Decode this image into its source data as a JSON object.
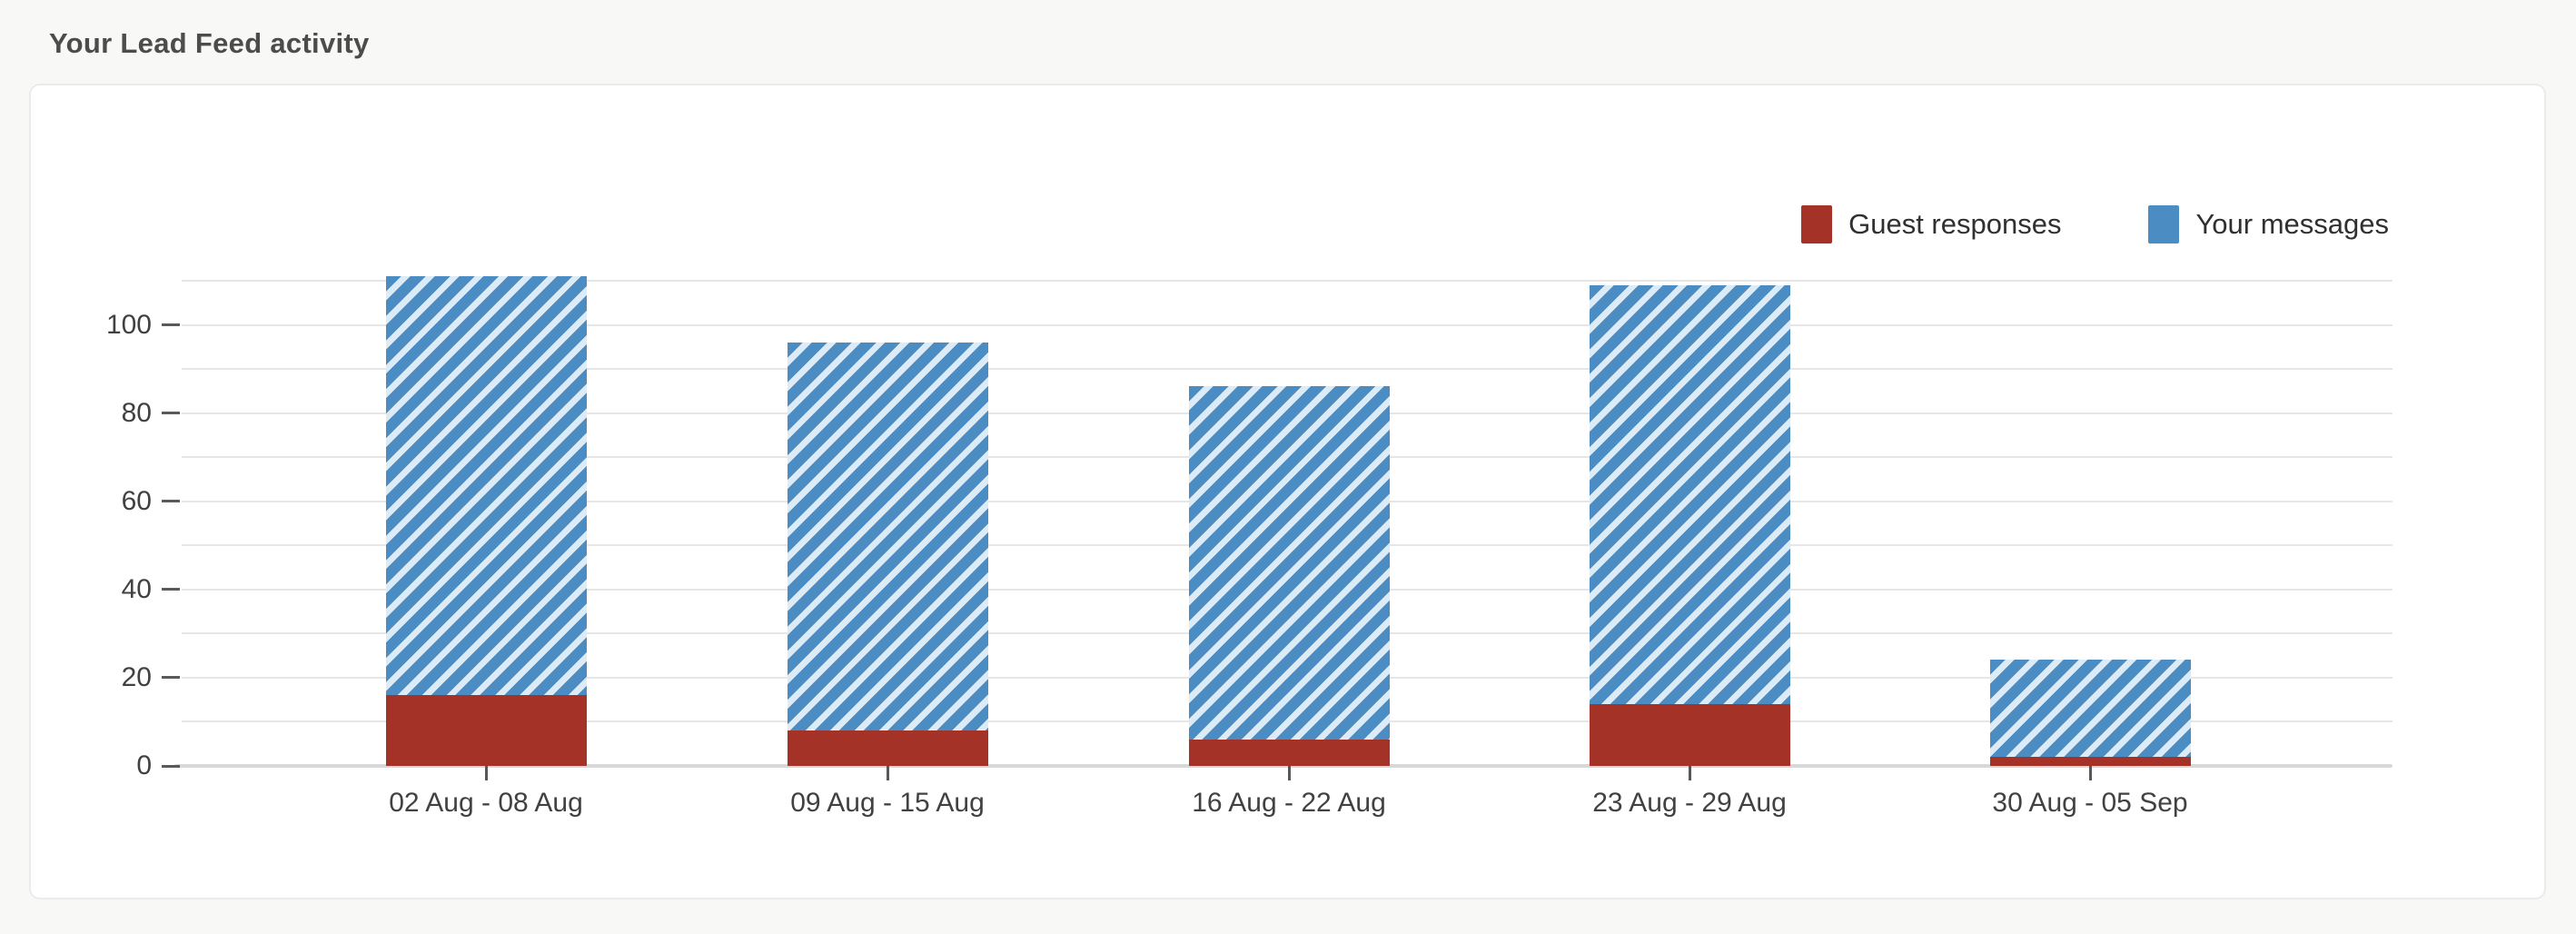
{
  "page": {
    "title": "Your Lead Feed activity"
  },
  "chart_data": {
    "type": "bar",
    "stacked": true,
    "title": "Your Lead Feed activity",
    "categories": [
      "02 Aug - 08 Aug",
      "09 Aug - 15 Aug",
      "16 Aug - 22 Aug",
      "23 Aug - 29 Aug",
      "30 Aug - 05 Sep"
    ],
    "series": [
      {
        "name": "Guest responses",
        "color": "#a43227",
        "pattern": "solid",
        "values": [
          16,
          8,
          6,
          14,
          2
        ]
      },
      {
        "name": "Your messages",
        "color": "#4b8cc2",
        "pattern": "diagonal-stripes",
        "pattern_color": "#dcebf6",
        "values": [
          95,
          88,
          80,
          95,
          22
        ]
      }
    ],
    "stack_totals": [
      111,
      96,
      86,
      109,
      24
    ],
    "xlabel": "",
    "ylabel": "",
    "ylim": [
      0,
      110
    ],
    "ytick_values": [
      0,
      20,
      40,
      60,
      80,
      100
    ],
    "ytick_labels": [
      "0",
      "20",
      "40",
      "60",
      "80",
      "100"
    ],
    "minor_grid_step": 10,
    "grid": "horizontal",
    "legend_position": "top-right",
    "colors": {
      "page_background": "#f8f8f7",
      "card_background": "#ffffff",
      "card_border": "#ebebe9",
      "gridline": "#e6e6e6",
      "axis_line": "#d8d8d8",
      "tick": "#58585a",
      "axis_text": "#414141",
      "legend_text": "#303030",
      "title_text": "#4c4c4c"
    }
  }
}
